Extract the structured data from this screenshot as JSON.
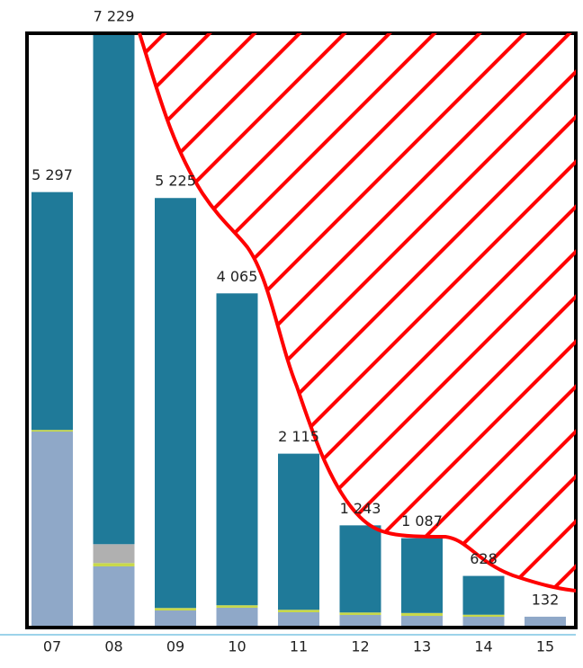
{
  "chart_data": {
    "type": "stacked-bar",
    "categories": [
      "07",
      "08",
      "09",
      "10",
      "11",
      "12",
      "13",
      "14",
      "15"
    ],
    "series": [
      {
        "color": "#8fa8c8",
        "values": [
          2384,
          744,
          208,
          241,
          186,
          153,
          142,
          131,
          132
        ]
      },
      {
        "color": "#c8d84a",
        "values": [
          20,
          40,
          30,
          30,
          30,
          30,
          35,
          25,
          0
        ]
      },
      {
        "color": "#b0b0b0",
        "values": [
          0,
          230,
          0,
          0,
          0,
          0,
          0,
          0,
          0
        ]
      },
      {
        "color": "#1f7a99",
        "values": [
          2893,
          6215,
          4987,
          3794,
          1899,
          1060,
          910,
          472,
          0
        ]
      }
    ],
    "totals": [
      5297,
      7229,
      5225,
      4065,
      2115,
      1243,
      1087,
      628,
      132
    ],
    "total_labels": [
      "5 297",
      "7 229",
      "5 225",
      "4 065",
      "2 115",
      "1 243",
      "1 087",
      "628",
      "132"
    ],
    "ylim": [
      0,
      7229
    ]
  }
}
